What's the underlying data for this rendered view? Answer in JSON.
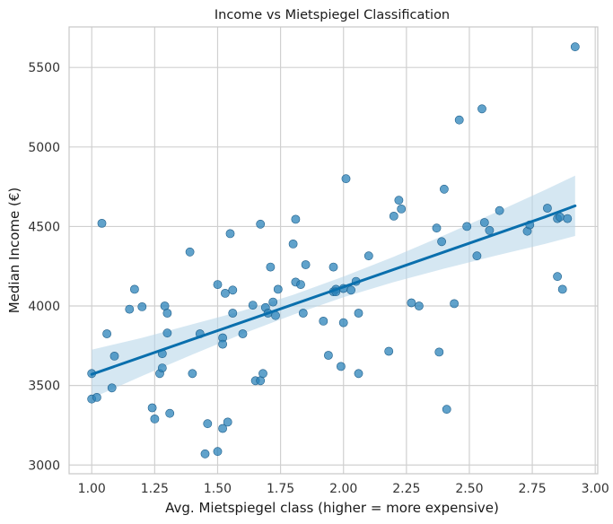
{
  "chart_data": {
    "type": "scatter",
    "title": "Income vs Mietspiegel Classification",
    "xlabel": "Avg. Mietspiegel class (higher = more expensive)",
    "ylabel": "Median Income (€)",
    "xlim": [
      0.91,
      3.01
    ],
    "ylim": [
      2945,
      5755
    ],
    "xticks": [
      1.0,
      1.25,
      1.5,
      1.75,
      2.0,
      2.25,
      2.5,
      2.75,
      3.0
    ],
    "xtick_labels": [
      "1.00",
      "1.25",
      "1.50",
      "1.75",
      "2.00",
      "2.25",
      "2.50",
      "2.75",
      "3.00"
    ],
    "yticks": [
      3000,
      3500,
      4000,
      4500,
      5000,
      5500
    ],
    "ytick_labels": [
      "3000",
      "3500",
      "4000",
      "4500",
      "5000",
      "5500"
    ],
    "grid": true,
    "colors": {
      "points": "#2b83ba",
      "line": "#0a6fad",
      "band": "#b9d7ea"
    },
    "regression": {
      "x": [
        1.0,
        1.2,
        1.4,
        1.6,
        1.8,
        2.0,
        2.2,
        2.4,
        2.6,
        2.8,
        2.92
      ],
      "y": [
        3570,
        3680,
        3790,
        3900,
        4010,
        4120,
        4230,
        4340,
        4450,
        4560,
        4630
      ],
      "ci_lower": [
        3420,
        3560,
        3695,
        3825,
        3945,
        4055,
        4150,
        4235,
        4315,
        4390,
        4440
      ],
      "ci_upper": [
        3725,
        3800,
        3885,
        3970,
        4070,
        4185,
        4310,
        4445,
        4585,
        4730,
        4820
      ]
    },
    "series": [
      {
        "x": [
          1.0,
          1.0,
          1.02,
          1.04,
          1.06,
          1.08,
          1.09,
          1.15,
          1.17,
          1.2,
          1.24,
          1.25,
          1.27,
          1.28,
          1.28,
          1.29,
          1.3,
          1.3,
          1.31,
          1.39,
          1.4,
          1.43,
          1.45,
          1.46,
          1.5,
          1.5,
          1.52,
          1.52,
          1.52,
          1.53,
          1.54,
          1.55,
          1.56,
          1.56,
          1.6,
          1.64,
          1.65,
          1.67,
          1.67,
          1.68,
          1.69,
          1.7,
          1.71,
          1.72,
          1.73,
          1.74,
          1.8,
          1.81,
          1.81,
          1.83,
          1.84,
          1.85,
          1.92,
          1.94,
          1.96,
          1.96,
          1.97,
          1.97,
          1.99,
          2.0,
          2.0,
          2.01,
          2.03,
          2.05,
          2.06,
          2.06,
          2.1,
          2.18,
          2.2,
          2.22,
          2.23,
          2.27,
          2.3,
          2.37,
          2.38,
          2.39,
          2.4,
          2.41,
          2.44,
          2.46,
          2.49,
          2.53,
          2.55,
          2.56,
          2.58,
          2.62,
          2.73,
          2.74,
          2.81,
          2.85,
          2.85,
          2.86,
          2.87,
          2.89,
          2.92
        ],
        "y": [
          3575,
          3415,
          3425,
          4520,
          3825,
          3485,
          3685,
          3980,
          4105,
          3995,
          3360,
          3290,
          3575,
          3700,
          3610,
          4000,
          3955,
          3830,
          3325,
          4340,
          3575,
          3825,
          3070,
          3260,
          4135,
          3085,
          3800,
          3760,
          3230,
          4080,
          3270,
          4455,
          3955,
          4100,
          3825,
          4005,
          3530,
          4515,
          3530,
          3575,
          3990,
          3955,
          4245,
          4025,
          3940,
          4105,
          4390,
          4150,
          4545,
          4135,
          3955,
          4260,
          3905,
          3690,
          4245,
          4090,
          4105,
          4090,
          3620,
          3895,
          4110,
          4800,
          4100,
          4155,
          3955,
          3575,
          4315,
          3715,
          4565,
          4665,
          4610,
          4020,
          4000,
          4490,
          3710,
          4405,
          4735,
          3350,
          4015,
          5170,
          4500,
          4315,
          5240,
          4525,
          4475,
          4600,
          4470,
          4510,
          4615,
          4550,
          4185,
          4560,
          4105,
          4550,
          5630
        ]
      }
    ]
  }
}
